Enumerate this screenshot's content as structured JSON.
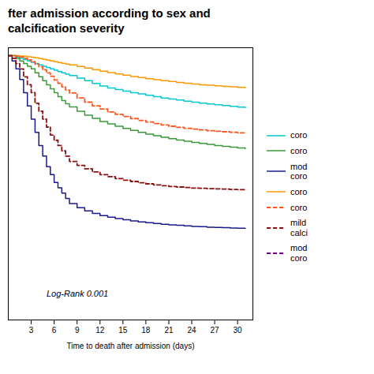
{
  "chart_data": {
    "type": "line",
    "title": "fter admission according to sex and\ncalcification severity",
    "xlabel": "Time to death after admission (days)",
    "annotations": [
      {
        "text": "Log-Rank 0.001",
        "x": 5,
        "y": 0.1
      }
    ],
    "xlim": [
      0,
      32
    ],
    "ylim": [
      0.0,
      1.03
    ],
    "xticks": [
      3,
      6,
      9,
      12,
      15,
      18,
      21,
      24,
      27,
      30
    ],
    "tick_labels": "x",
    "grid": false,
    "legend": "right",
    "x": [
      0,
      0.5,
      1,
      1.5,
      2,
      2.5,
      3,
      3.5,
      4,
      4.5,
      5,
      5.5,
      6,
      6.5,
      7,
      7.5,
      8,
      9,
      10,
      11,
      12,
      13,
      14,
      15,
      16,
      17,
      18,
      19,
      20,
      21,
      22,
      23,
      24,
      25,
      26,
      27,
      28,
      29,
      30,
      31
    ],
    "series": [
      {
        "name": "coro",
        "color": "#00c8d4",
        "line_style": "solid",
        "values": [
          1.0,
          1.0,
          0.995,
          0.99,
          0.985,
          0.98,
          0.975,
          0.97,
          0.965,
          0.96,
          0.955,
          0.95,
          0.945,
          0.94,
          0.935,
          0.93,
          0.925,
          0.915,
          0.905,
          0.895,
          0.885,
          0.878,
          0.872,
          0.866,
          0.86,
          0.855,
          0.85,
          0.845,
          0.84,
          0.836,
          0.832,
          0.828,
          0.824,
          0.82,
          0.817,
          0.814,
          0.811,
          0.808,
          0.805,
          0.803
        ]
      },
      {
        "name": "coro",
        "color": "#3a9a3a",
        "line_style": "solid",
        "values": [
          1.0,
          1.0,
          0.99,
          0.98,
          0.97,
          0.96,
          0.95,
          0.935,
          0.92,
          0.905,
          0.89,
          0.875,
          0.86,
          0.845,
          0.83,
          0.818,
          0.806,
          0.79,
          0.775,
          0.763,
          0.751,
          0.742,
          0.733,
          0.725,
          0.717,
          0.71,
          0.703,
          0.697,
          0.691,
          0.686,
          0.681,
          0.676,
          0.672,
          0.668,
          0.664,
          0.66,
          0.657,
          0.654,
          0.651,
          0.648
        ]
      },
      {
        "name": "mod\ncoro",
        "color": "#1a1a8c",
        "line_style": "solid",
        "values": [
          1.0,
          0.98,
          0.95,
          0.91,
          0.86,
          0.81,
          0.76,
          0.71,
          0.66,
          0.62,
          0.58,
          0.55,
          0.52,
          0.5,
          0.48,
          0.46,
          0.44,
          0.425,
          0.413,
          0.403,
          0.395,
          0.389,
          0.384,
          0.379,
          0.375,
          0.371,
          0.368,
          0.365,
          0.362,
          0.36,
          0.358,
          0.356,
          0.354,
          0.353,
          0.351,
          0.35,
          0.349,
          0.348,
          0.347,
          0.346
        ]
      },
      {
        "name": "coro",
        "color": "#ff9800",
        "line_style": "solid",
        "values": [
          1.0,
          1.0,
          1.0,
          0.999,
          0.998,
          0.996,
          0.994,
          0.992,
          0.989,
          0.986,
          0.983,
          0.98,
          0.977,
          0.974,
          0.971,
          0.968,
          0.965,
          0.959,
          0.953,
          0.947,
          0.941,
          0.936,
          0.931,
          0.926,
          0.921,
          0.917,
          0.913,
          0.909,
          0.905,
          0.902,
          0.899,
          0.896,
          0.893,
          0.89,
          0.888,
          0.886,
          0.884,
          0.882,
          0.88,
          0.878
        ]
      },
      {
        "name": "coro",
        "color": "#ff5722",
        "line_style": "dashed",
        "values": [
          1.0,
          1.0,
          0.998,
          0.995,
          0.99,
          0.984,
          0.977,
          0.968,
          0.958,
          0.947,
          0.935,
          0.922,
          0.908,
          0.895,
          0.882,
          0.87,
          0.859,
          0.84,
          0.824,
          0.81,
          0.798,
          0.787,
          0.778,
          0.77,
          0.762,
          0.755,
          0.749,
          0.743,
          0.738,
          0.733,
          0.729,
          0.725,
          0.722,
          0.719,
          0.716,
          0.714,
          0.712,
          0.71,
          0.708,
          0.706
        ]
      },
      {
        "name": "mild\ncalci",
        "color": "#8b1010",
        "line_style": "dashed",
        "values": [
          1.0,
          0.99,
          0.97,
          0.95,
          0.92,
          0.89,
          0.86,
          0.82,
          0.79,
          0.76,
          0.73,
          0.7,
          0.68,
          0.66,
          0.64,
          0.62,
          0.6,
          0.585,
          0.572,
          0.56,
          0.55,
          0.542,
          0.535,
          0.529,
          0.524,
          0.519,
          0.515,
          0.511,
          0.508,
          0.505,
          0.503,
          0.501,
          0.499,
          0.498,
          0.497,
          0.496,
          0.495,
          0.494,
          0.493,
          0.492
        ]
      },
      {
        "name": "mod\ncoro",
        "color": "#6b0080",
        "line_style": "dashed",
        "values": [
          null,
          null,
          null,
          null,
          null,
          null,
          null,
          null,
          null,
          null,
          null,
          null,
          null,
          null,
          null,
          null,
          null,
          null,
          null,
          null,
          null,
          null,
          null,
          null,
          null,
          null,
          null,
          null,
          null,
          null,
          null,
          null,
          null,
          null,
          null,
          null,
          null,
          null,
          null,
          null
        ]
      }
    ]
  }
}
